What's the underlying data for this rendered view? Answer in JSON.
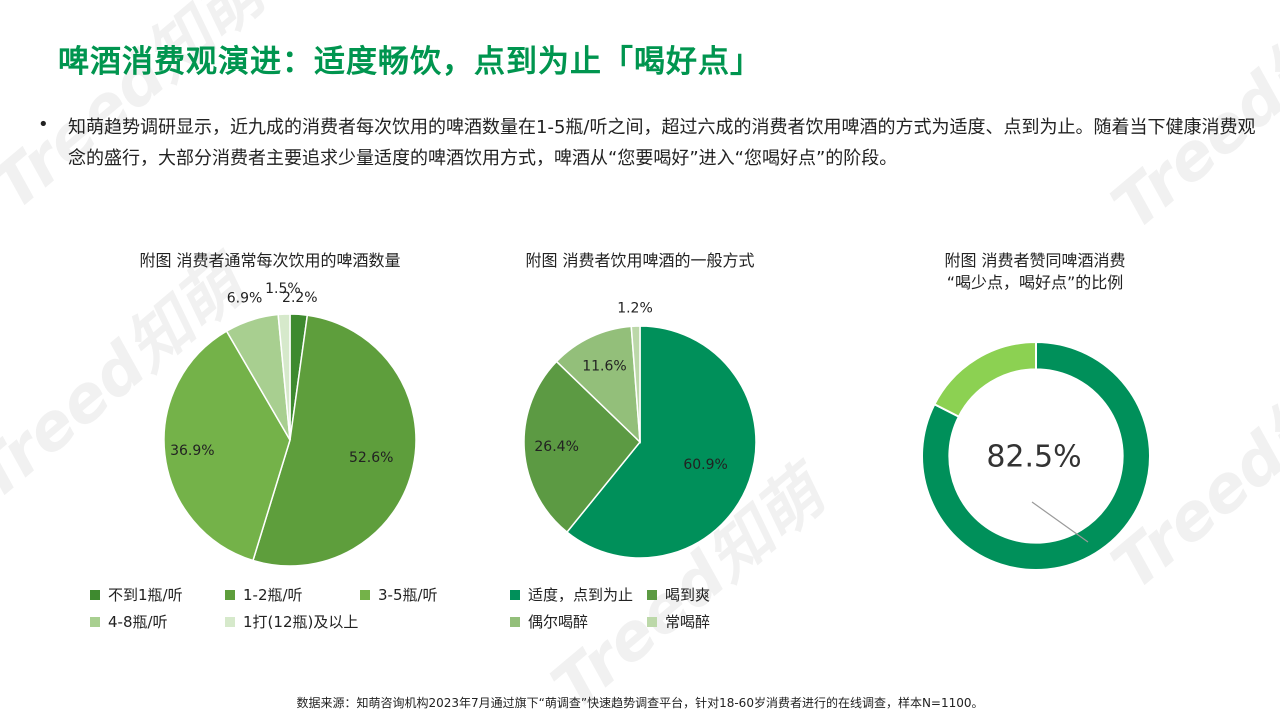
{
  "watermark_text": "Treed知萌",
  "title": "啤酒消费观演进：适度畅饮，点到为止「喝好点」",
  "bullet": "知萌趋势调研显示，近九成的消费者每次饮用的啤酒数量在1-5瓶/听之间，超过六成的消费者饮用啤酒的方式为适度、点到为止。随着当下健康消费观念的盛行，大部分消费者主要追求少量适度的啤酒饮用方式，啤酒从“您要喝好”进入“您喝好点”的阶段。",
  "footer": "数据来源：知萌咨询机构2023年7月通过旗下“萌调查”快速趋势调查平台，针对18-60岁消费者进行的在线调查，样本N=1100。",
  "chart_data": [
    {
      "type": "pie",
      "title": "附图 消费者通常每次饮用的啤酒数量",
      "categories": [
        "不到1瓶/听",
        "1-2瓶/听",
        "3-5瓶/听",
        "4-8瓶/听",
        "1打(12瓶)及以上"
      ],
      "values": [
        2.2,
        52.6,
        36.9,
        6.9,
        1.5
      ],
      "labels": [
        "2.2%",
        "52.6%",
        "36.9%",
        "6.9%",
        "1.5%"
      ],
      "colors": [
        "#3e8a2f",
        "#5e9e3c",
        "#74b249",
        "#a8cf90",
        "#d6e9cb"
      ],
      "legend": "bottom"
    },
    {
      "type": "pie",
      "title": "附图 消费者饮用啤酒的一般方式",
      "categories": [
        "适度，点到为止",
        "喝到爽",
        "偶尔喝醉",
        "常喝醉"
      ],
      "values": [
        60.9,
        26.4,
        11.6,
        1.2
      ],
      "labels": [
        "60.9%",
        "26.4%",
        "11.6%",
        "1.2%"
      ],
      "colors": [
        "#00905a",
        "#5c9a43",
        "#93bf7a",
        "#bcd8a9"
      ],
      "legend": "bottom"
    },
    {
      "type": "donut",
      "title": "附图  消费者赞同啤酒消费\n“喝少点，喝好点”的比例",
      "values": [
        82.5,
        17.5
      ],
      "center_label": "82.5%",
      "colors": [
        "#00905a",
        "#8cd152"
      ]
    }
  ]
}
